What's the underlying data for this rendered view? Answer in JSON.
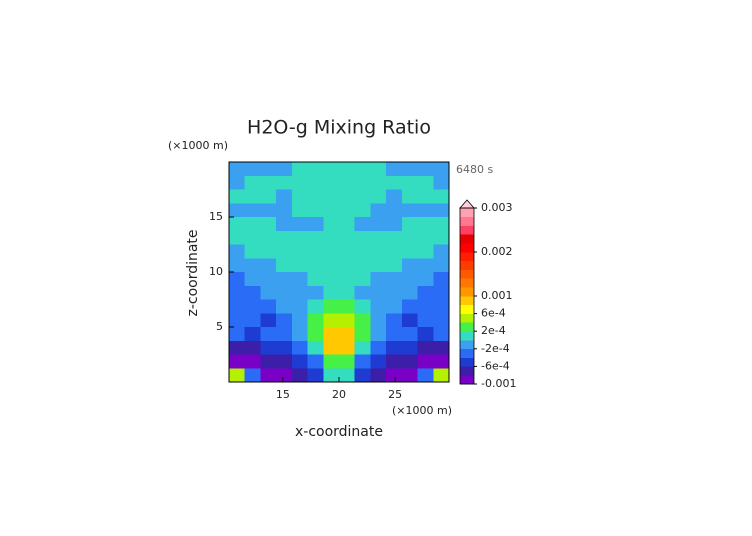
{
  "chart_data": {
    "type": "contour",
    "title": "H2O-g Mixing Ratio",
    "time_label": "6480 s",
    "x_label": "x-coordinate",
    "y_label": "z-coordinate",
    "x_unit": "(×1000 m)",
    "y_unit": "(×1000 m)",
    "xlim": [
      10.2,
      29.8
    ],
    "ylim": [
      0,
      20
    ],
    "xticks": [
      15,
      20,
      25
    ],
    "yticks": [
      5,
      10,
      15
    ],
    "x": [
      10.9,
      12.3,
      13.7,
      15.1,
      16.5,
      17.9,
      19.3,
      20.7,
      22.1,
      23.5,
      24.9,
      26.3,
      27.7,
      29.1
    ],
    "y": [
      19.375,
      18.125,
      16.875,
      15.625,
      14.375,
      13.125,
      11.875,
      10.625,
      9.375,
      8.125,
      6.875,
      5.625,
      4.375,
      3.125,
      1.875,
      0.625
    ],
    "z": [
      [
        -0.0001,
        -0.0001,
        -0.0001,
        -0.0001,
        0.0001,
        0.0001,
        0.0001,
        0.0001,
        0.0001,
        0.0001,
        -0.0001,
        -0.0001,
        -0.0001,
        -0.0001
      ],
      [
        -0.0001,
        0.0001,
        0.0001,
        0.0001,
        0.0001,
        0.0001,
        0.0001,
        0.0001,
        0.0001,
        0.0001,
        0.0001,
        0.0001,
        0.0001,
        -0.0001
      ],
      [
        0.0001,
        0.0001,
        0.0001,
        -0.0001,
        0.0001,
        0.0001,
        0.0001,
        0.0001,
        0.0001,
        0.0001,
        -0.0001,
        0.0001,
        0.0001,
        0.0001
      ],
      [
        -0.0001,
        -0.0001,
        -0.0001,
        -0.0001,
        0.0001,
        0.0001,
        0.0001,
        0.0001,
        0.0001,
        -0.0001,
        -0.0001,
        -0.0001,
        -0.0001,
        -0.0001
      ],
      [
        0.0001,
        0.0001,
        0.0001,
        -0.0001,
        -0.0001,
        -0.0001,
        0.0001,
        0.0001,
        -0.0001,
        -0.0001,
        -0.0001,
        0.0001,
        0.0001,
        0.0001
      ],
      [
        0.0001,
        0.0001,
        0.0001,
        0.0001,
        0.0001,
        0.0001,
        0.0001,
        0.0001,
        0.0001,
        0.0001,
        0.0001,
        0.0001,
        0.0001,
        0.0001
      ],
      [
        -0.0001,
        0.0001,
        0.0001,
        0.0001,
        0.0001,
        0.0001,
        0.0001,
        0.0001,
        0.0001,
        0.0001,
        0.0001,
        0.0001,
        0.0001,
        -0.0001
      ],
      [
        -0.0001,
        -0.0001,
        -0.0001,
        0.0001,
        0.0001,
        0.0001,
        0.0001,
        0.0001,
        0.0001,
        0.0001,
        0.0001,
        -0.0001,
        -0.0001,
        -0.0001
      ],
      [
        -0.0003,
        -0.0001,
        -0.0001,
        -0.0001,
        -0.0001,
        0.0001,
        0.0001,
        0.0001,
        0.0001,
        -0.0001,
        -0.0001,
        -0.0001,
        -0.0001,
        -0.0003
      ],
      [
        -0.0003,
        -0.0003,
        -0.0001,
        -0.0001,
        -0.0001,
        -0.0001,
        0.0001,
        0.0001,
        -0.0001,
        -0.0001,
        -0.0001,
        -0.0001,
        -0.0003,
        -0.0003
      ],
      [
        -0.0003,
        -0.0003,
        -0.0003,
        -0.0001,
        -0.0001,
        0.0001,
        0.0003,
        0.0003,
        0.0001,
        -0.0001,
        -0.0001,
        -0.0003,
        -0.0003,
        -0.0003
      ],
      [
        -0.0003,
        -0.0003,
        -0.0005,
        -0.0003,
        -0.0001,
        0.0003,
        0.0005,
        0.0005,
        0.0003,
        -0.0001,
        -0.0003,
        -0.0005,
        -0.0003,
        -0.0003
      ],
      [
        -0.0003,
        -0.0005,
        -0.0003,
        -0.0003,
        -0.0001,
        0.0003,
        0.0009,
        0.0009,
        0.0003,
        -0.0001,
        -0.0003,
        -0.0003,
        -0.0005,
        -0.0003
      ],
      [
        -0.0007,
        -0.0007,
        -0.0005,
        -0.0005,
        -0.0003,
        0.0001,
        0.0009,
        0.0009,
        0.0001,
        -0.0003,
        -0.0005,
        -0.0005,
        -0.0007,
        -0.0007
      ],
      [
        -0.0009,
        -0.0009,
        -0.0007,
        -0.0007,
        -0.0005,
        -0.0003,
        0.0003,
        0.0003,
        -0.0003,
        -0.0005,
        -0.0007,
        -0.0007,
        -0.0009,
        -0.0009
      ],
      [
        0.0005,
        -0.0003,
        -0.0009,
        -0.0009,
        -0.0007,
        -0.0005,
        0.0001,
        0.0001,
        -0.0005,
        -0.0007,
        -0.0009,
        -0.0009,
        -0.0003,
        0.0005
      ]
    ],
    "levels": [
      -0.001,
      -0.0008,
      -0.0006,
      -0.0004,
      -0.0002,
      0,
      0.0002,
      0.0004,
      0.0006,
      0.0008,
      0.001,
      0.0012,
      0.0014,
      0.0016,
      0.0018,
      0.002,
      0.0022,
      0.0024,
      0.0026,
      0.0028,
      0.003
    ],
    "colors": [
      "#7a00c8",
      "#3c1ea8",
      "#1e3cd2",
      "#2a6cf5",
      "#3ca0f0",
      "#34dcc0",
      "#46f046",
      "#b4f000",
      "#ffff00",
      "#ffc800",
      "#ff9600",
      "#ff7800",
      "#ff5a00",
      "#ff3c00",
      "#ff1e00",
      "#ff0000",
      "#e60000",
      "#ff4060",
      "#ff7890",
      "#ffa0b4"
    ],
    "over_color": "#ffd0dc",
    "colorbar_ticks": [
      {
        "value": -0.001,
        "label": "-0.001"
      },
      {
        "value": -0.0006,
        "label": "-6e-4"
      },
      {
        "value": -0.0002,
        "label": "-2e-4"
      },
      {
        "value": 0.0002,
        "label": "2e-4"
      },
      {
        "value": 0.0006,
        "label": "6e-4"
      },
      0.001,
      0.002,
      0.003
    ]
  }
}
